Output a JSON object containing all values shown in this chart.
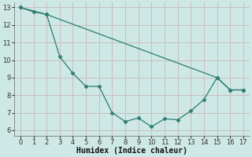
{
  "xlabel": "Humidex (Indice chaleur)",
  "line1_x": [
    0,
    1,
    2,
    3,
    4,
    5,
    6,
    7,
    8,
    9,
    10,
    11,
    12,
    13,
    14,
    15,
    16,
    17
  ],
  "line1_y": [
    13.0,
    12.75,
    12.6,
    10.2,
    9.25,
    8.5,
    8.5,
    7.0,
    6.5,
    6.7,
    6.2,
    6.65,
    6.6,
    7.1,
    7.75,
    9.0,
    8.3,
    8.3
  ],
  "line2_x": [
    0,
    2,
    15,
    16,
    17
  ],
  "line2_y": [
    13.0,
    12.6,
    9.0,
    8.3,
    8.3
  ],
  "line_color": "#2d7d6e",
  "bg_color": "#cde8e5",
  "grid_major_color": "#c8b8b8",
  "grid_minor_color": "#ddd0d0",
  "marker": "D",
  "marker_size": 2.5,
  "ylim": [
    5.7,
    13.3
  ],
  "xlim": [
    -0.5,
    17.5
  ],
  "yticks": [
    6,
    7,
    8,
    9,
    10,
    11,
    12,
    13
  ],
  "xticks": [
    0,
    1,
    2,
    3,
    4,
    5,
    6,
    7,
    8,
    9,
    10,
    11,
    12,
    13,
    14,
    15,
    16,
    17
  ],
  "xlabel_fontsize": 7,
  "tick_fontsize": 6,
  "linewidth": 0.9
}
